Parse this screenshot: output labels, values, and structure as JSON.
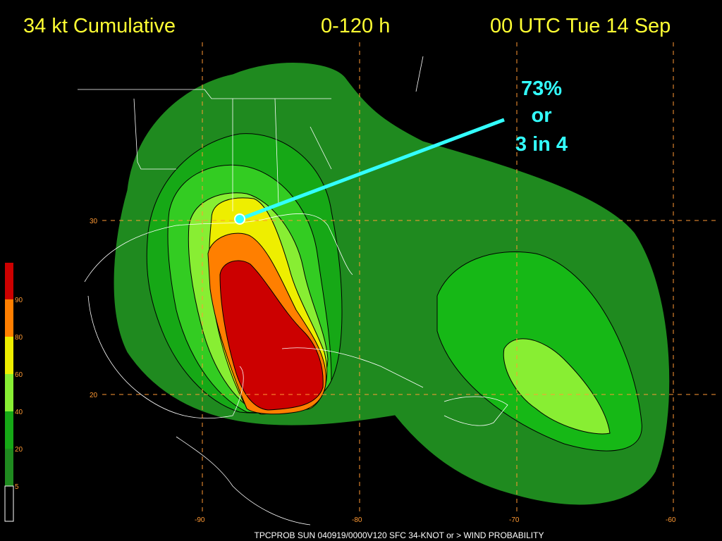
{
  "header": {
    "left": "34 kt Cumulative",
    "middle": "0-120 h",
    "right": "00 UTC Tue 14 Sep"
  },
  "annotation": {
    "lines": [
      "73%",
      "or",
      "3 in 4"
    ]
  },
  "legend": {
    "labels": [
      90,
      80,
      60,
      40,
      20,
      5
    ]
  },
  "latitudes": [
    30,
    20
  ],
  "longitudes": [
    -90,
    -80,
    -70,
    -60
  ],
  "footer": "TPCPROB SUN 040919/0000V120 SFC 34-KNOT or > WIND PROBABILITY"
}
